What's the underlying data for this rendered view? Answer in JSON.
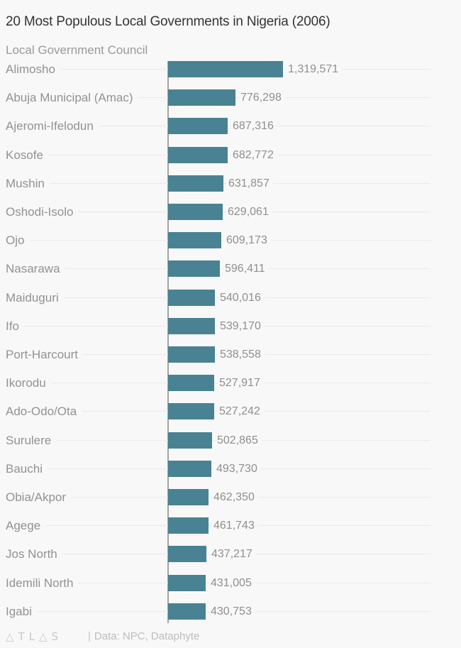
{
  "chart_data": {
    "type": "bar",
    "orientation": "horizontal",
    "title": "20 Most Populous Local Governments in Nigeria (2006)",
    "category_axis_label": "Local Government Council",
    "categories": [
      "Alimosho",
      "Abuja Municipal (Amac)",
      "Ajeromi-Ifelodun",
      "Kosofe",
      "Mushin",
      "Oshodi-Isolo",
      "Ojo",
      "Nasarawa",
      "Maiduguri",
      "Ifo",
      "Port-Harcourt",
      "Ikorodu",
      "Ado-Odo/Ota",
      "Surulere",
      "Bauchi",
      "Obia/Akpor",
      "Agege",
      "Jos North",
      "Idemili North",
      "Igabi"
    ],
    "values": [
      1319571,
      776298,
      687316,
      682772,
      631857,
      629061,
      609173,
      596411,
      540016,
      539170,
      538558,
      527917,
      527242,
      502865,
      493730,
      462350,
      461743,
      437217,
      431005,
      430753
    ],
    "value_labels": [
      "1,319,571",
      "776,298",
      "687,316",
      "682,772",
      "631,857",
      "629,061",
      "609,173",
      "596,411",
      "540,016",
      "539,170",
      "538,558",
      "527,917",
      "527,242",
      "502,865",
      "493,730",
      "462,350",
      "461,743",
      "437,217",
      "431,005",
      "430,753"
    ],
    "xlim": [
      0,
      1319571
    ],
    "grid": "row-leader-lines",
    "legend": "none",
    "bar_color": "#498292"
  },
  "footer": {
    "logo_text": "△TL△S",
    "separator": "|",
    "source": "Data: NPC, Dataphyte"
  },
  "colors": {
    "background": "#f8f8f8",
    "bar": "#498292",
    "axis_line": "#a3a3a3",
    "leader_line": "#e9e9e9",
    "title_text": "#333333",
    "label_text": "#929292",
    "value_text": "#8f8f8f",
    "footer_text": "#bdbdbd"
  }
}
